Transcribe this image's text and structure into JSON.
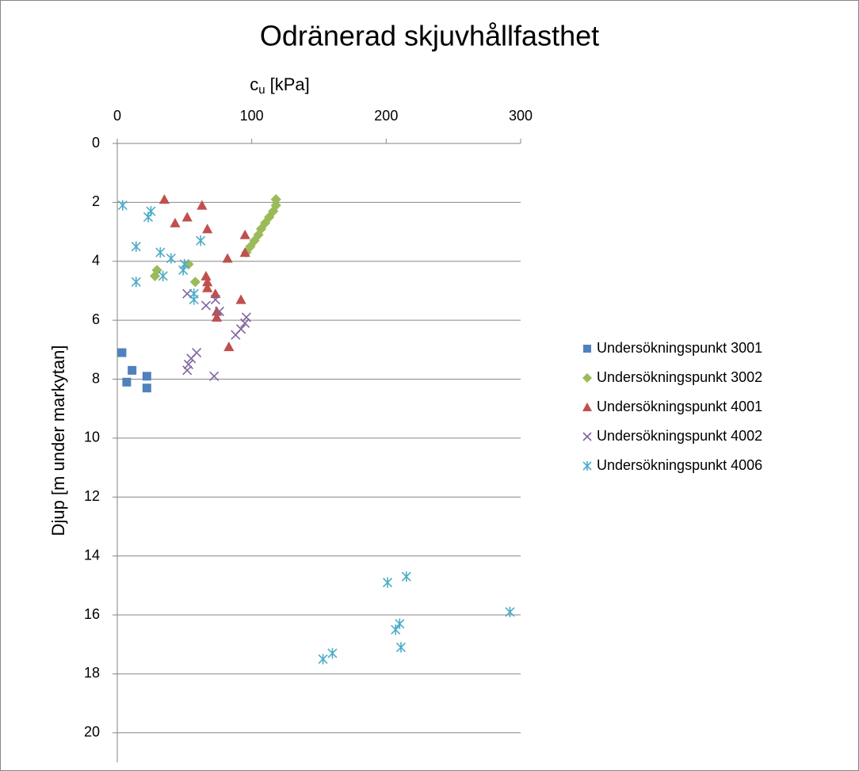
{
  "chart_data": {
    "type": "scatter",
    "title": "Odränerad skjuvhållfasthet",
    "x_label": {
      "symbol": "c",
      "subscript": "u",
      "unit": "[kPa]"
    },
    "y_label": "Djup [m under markytan]",
    "xlim": [
      0,
      300
    ],
    "xticks": [
      0,
      100,
      200,
      300
    ],
    "ylim": [
      0,
      21
    ],
    "yticks": [
      0,
      2,
      4,
      6,
      8,
      10,
      12,
      14,
      16,
      18,
      20
    ],
    "y_inverted": true,
    "x_axis_position": "top",
    "grid": true,
    "legend": "right",
    "series": [
      {
        "name": "Undersökningspunkt 3001",
        "color": "#4f81bd",
        "marker": "square",
        "x": [
          3.5,
          11,
          22,
          7,
          22
        ],
        "values": [
          7.1,
          7.7,
          7.9,
          8.1,
          8.3
        ]
      },
      {
        "name": "Undersökningspunkt 3002",
        "color": "#9bbb59",
        "marker": "diamond",
        "x": [
          118,
          118,
          116,
          113,
          110,
          107,
          105,
          102,
          99,
          96,
          53,
          29.5,
          28,
          58
        ],
        "values": [
          1.9,
          2.1,
          2.3,
          2.5,
          2.7,
          2.9,
          3.1,
          3.3,
          3.5,
          3.7,
          4.1,
          4.3,
          4.5,
          4.7
        ]
      },
      {
        "name": "Undersökningspunkt 4001",
        "color": "#c0504d",
        "marker": "triangle",
        "x": [
          35,
          63,
          52,
          43,
          67,
          95,
          95,
          82,
          66,
          67,
          67,
          73,
          92,
          74,
          74,
          83
        ],
        "values": [
          1.9,
          2.1,
          2.5,
          2.7,
          2.9,
          3.1,
          3.7,
          3.9,
          4.5,
          4.7,
          4.9,
          5.1,
          5.3,
          5.7,
          5.9,
          6.9
        ]
      },
      {
        "name": "Undersökningspunkt 4002",
        "color": "#8064a2",
        "marker": "x",
        "x": [
          52,
          73,
          66,
          76,
          96,
          95,
          92,
          88,
          59,
          55,
          53,
          52,
          72
        ],
        "values": [
          5.1,
          5.3,
          5.5,
          5.7,
          5.9,
          6.1,
          6.3,
          6.5,
          7.1,
          7.3,
          7.5,
          7.7,
          7.9
        ]
      },
      {
        "name": "Undersökningspunkt 4006",
        "color": "#4bacc6",
        "marker": "star",
        "x": [
          4,
          25,
          23,
          62,
          14,
          32,
          40,
          50,
          49,
          34,
          14,
          57,
          57,
          201,
          215,
          292,
          210,
          207,
          211,
          160,
          153
        ],
        "values": [
          2.1,
          2.3,
          2.5,
          3.3,
          3.5,
          3.7,
          3.9,
          4.1,
          4.3,
          4.5,
          4.7,
          5.1,
          5.3,
          14.9,
          14.7,
          15.9,
          16.3,
          16.5,
          17.1,
          17.3,
          17.5
        ]
      }
    ]
  }
}
